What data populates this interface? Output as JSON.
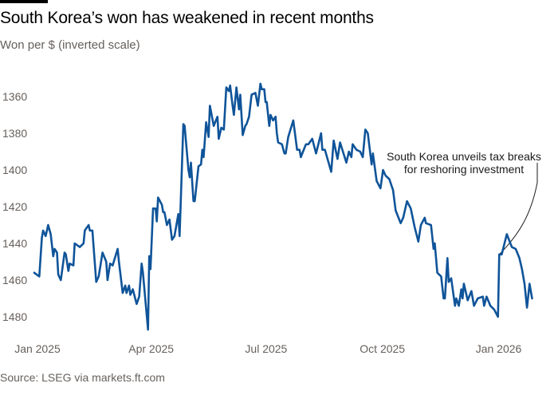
{
  "title": "South Korea’s won has weakened in recent months",
  "subtitle": "Won per $ (inverted scale)",
  "source": "Source: LSEG via markets.ft.com",
  "colors": {
    "line": "#0f5499",
    "text": "#000000",
    "muted": "#66605c",
    "brand_bar": "#000000"
  },
  "chart_data": {
    "type": "line",
    "title": "South Korea’s won has weakened in recent months",
    "ylabel": "Won per $ (inverted scale)",
    "xlabel": "",
    "y_inverted": true,
    "grid": false,
    "y_ticks": [
      1360,
      1380,
      1400,
      1420,
      1440,
      1460,
      1480
    ],
    "x_ticks": [
      {
        "date": "2025-01-01",
        "label": "Jan 2025"
      },
      {
        "date": "2025-04-01",
        "label": "Apr 2025"
      },
      {
        "date": "2025-07-01",
        "label": "Jul 2025"
      },
      {
        "date": "2025-10-01",
        "label": "Oct 2025"
      },
      {
        "date": "2026-01-01",
        "label": "Jan 2026"
      }
    ],
    "annotation": {
      "lines": [
        "South Korea unveils tax breaks",
        "for reshoring investment"
      ],
      "date": "2026-01-04",
      "value": 1446
    },
    "series": [
      {
        "points": [
          [
            "2025-01-01",
            1456
          ],
          [
            "2025-01-05",
            1458
          ],
          [
            "2025-01-07",
            1437
          ],
          [
            "2025-01-08",
            1433
          ],
          [
            "2025-01-10",
            1436
          ],
          [
            "2025-01-12",
            1430
          ],
          [
            "2025-01-14",
            1435
          ],
          [
            "2025-01-16",
            1447
          ],
          [
            "2025-01-17",
            1443
          ],
          [
            "2025-01-19",
            1445
          ],
          [
            "2025-01-20",
            1457
          ],
          [
            "2025-01-22",
            1460
          ],
          [
            "2025-01-25",
            1445
          ],
          [
            "2025-01-26",
            1446
          ],
          [
            "2025-01-28",
            1455
          ],
          [
            "2025-01-29",
            1451
          ],
          [
            "2025-02-01",
            1452
          ],
          [
            "2025-02-02",
            1440
          ],
          [
            "2025-02-06",
            1442
          ],
          [
            "2025-02-09",
            1440
          ],
          [
            "2025-02-10",
            1433
          ],
          [
            "2025-02-13",
            1430
          ],
          [
            "2025-02-14",
            1433
          ],
          [
            "2025-02-16",
            1433
          ],
          [
            "2025-02-19",
            1461
          ],
          [
            "2025-02-21",
            1458
          ],
          [
            "2025-02-24",
            1445
          ],
          [
            "2025-02-27",
            1450
          ],
          [
            "2025-02-28",
            1460
          ],
          [
            "2025-03-02",
            1451
          ],
          [
            "2025-03-04",
            1452
          ],
          [
            "2025-03-08",
            1443
          ],
          [
            "2025-03-09",
            1450
          ],
          [
            "2025-03-12",
            1467
          ],
          [
            "2025-03-14",
            1463
          ],
          [
            "2025-03-15",
            1467
          ],
          [
            "2025-03-17",
            1463
          ],
          [
            "2025-03-18",
            1468
          ],
          [
            "2025-03-20",
            1465
          ],
          [
            "2025-03-23",
            1473
          ],
          [
            "2025-03-25",
            1469
          ],
          [
            "2025-03-27",
            1451
          ],
          [
            "2025-03-28",
            1456
          ],
          [
            "2025-04-01",
            1487
          ],
          [
            "2025-04-02",
            1447
          ],
          [
            "2025-04-03",
            1454
          ],
          [
            "2025-04-05",
            1421
          ],
          [
            "2025-04-07",
            1421
          ],
          [
            "2025-04-08",
            1428
          ],
          [
            "2025-04-09",
            1415
          ],
          [
            "2025-04-12",
            1419
          ],
          [
            "2025-04-13",
            1423
          ],
          [
            "2025-04-14",
            1423
          ],
          [
            "2025-04-16",
            1430
          ],
          [
            "2025-04-18",
            1427
          ],
          [
            "2025-04-20",
            1438
          ],
          [
            "2025-04-22",
            1436
          ],
          [
            "2025-04-25",
            1424
          ],
          [
            "2025-04-26",
            1436
          ],
          [
            "2025-04-29",
            1375
          ],
          [
            "2025-04-30",
            1376
          ],
          [
            "2025-05-03",
            1400
          ],
          [
            "2025-05-04",
            1404
          ],
          [
            "2025-05-05",
            1396
          ],
          [
            "2025-05-07",
            1417
          ],
          [
            "2025-05-08",
            1417
          ],
          [
            "2025-05-11",
            1398
          ],
          [
            "2025-05-13",
            1397
          ],
          [
            "2025-05-14",
            1389
          ],
          [
            "2025-05-15",
            1393
          ],
          [
            "2025-05-17",
            1374
          ],
          [
            "2025-05-19",
            1382
          ],
          [
            "2025-05-20",
            1365
          ],
          [
            "2025-05-23",
            1376
          ],
          [
            "2025-05-26",
            1371
          ],
          [
            "2025-05-27",
            1383
          ],
          [
            "2025-05-29",
            1377
          ],
          [
            "2025-05-31",
            1378
          ],
          [
            "2025-06-02",
            1355
          ],
          [
            "2025-06-04",
            1357
          ],
          [
            "2025-06-05",
            1354
          ],
          [
            "2025-06-07",
            1365
          ],
          [
            "2025-06-08",
            1370
          ],
          [
            "2025-06-10",
            1355
          ],
          [
            "2025-06-12",
            1367
          ],
          [
            "2025-06-13",
            1359
          ],
          [
            "2025-06-15",
            1381
          ],
          [
            "2025-06-17",
            1376
          ],
          [
            "2025-06-18",
            1375
          ],
          [
            "2025-06-20",
            1371
          ],
          [
            "2025-06-22",
            1359
          ],
          [
            "2025-06-25",
            1358
          ],
          [
            "2025-06-27",
            1365
          ],
          [
            "2025-06-29",
            1353
          ],
          [
            "2025-06-30",
            1356
          ],
          [
            "2025-07-02",
            1356
          ],
          [
            "2025-07-03",
            1363
          ],
          [
            "2025-07-04",
            1363
          ],
          [
            "2025-07-06",
            1376
          ],
          [
            "2025-07-07",
            1370
          ],
          [
            "2025-07-09",
            1373
          ],
          [
            "2025-07-11",
            1371
          ],
          [
            "2025-07-12",
            1380
          ],
          [
            "2025-07-13",
            1385
          ],
          [
            "2025-07-16",
            1386
          ],
          [
            "2025-07-18",
            1391
          ],
          [
            "2025-07-19",
            1391
          ],
          [
            "2025-07-21",
            1382
          ],
          [
            "2025-07-25",
            1373
          ],
          [
            "2025-07-28",
            1389
          ],
          [
            "2025-07-30",
            1389
          ],
          [
            "2025-07-31",
            1393
          ],
          [
            "2025-08-04",
            1386
          ],
          [
            "2025-08-06",
            1386
          ],
          [
            "2025-08-09",
            1383
          ],
          [
            "2025-08-12",
            1391
          ],
          [
            "2025-08-16",
            1380
          ],
          [
            "2025-08-17",
            1389
          ],
          [
            "2025-08-19",
            1389
          ],
          [
            "2025-08-24",
            1401
          ],
          [
            "2025-08-26",
            1384
          ],
          [
            "2025-08-29",
            1394
          ],
          [
            "2025-08-31",
            1385
          ],
          [
            "2025-09-05",
            1396
          ],
          [
            "2025-09-07",
            1390
          ],
          [
            "2025-09-09",
            1393
          ],
          [
            "2025-09-10",
            1386
          ],
          [
            "2025-09-13",
            1389
          ],
          [
            "2025-09-16",
            1390
          ],
          [
            "2025-09-18",
            1393
          ],
          [
            "2025-09-20",
            1378
          ],
          [
            "2025-09-22",
            1380
          ],
          [
            "2025-09-25",
            1397
          ],
          [
            "2025-09-26",
            1391
          ],
          [
            "2025-09-29",
            1406
          ],
          [
            "2025-10-02",
            1410
          ],
          [
            "2025-10-04",
            1400
          ],
          [
            "2025-10-06",
            1403
          ],
          [
            "2025-10-09",
            1405
          ],
          [
            "2025-10-12",
            1411
          ],
          [
            "2025-10-14",
            1422
          ],
          [
            "2025-10-18",
            1429
          ],
          [
            "2025-10-20",
            1426
          ],
          [
            "2025-10-21",
            1423
          ],
          [
            "2025-10-23",
            1417
          ],
          [
            "2025-10-26",
            1421
          ],
          [
            "2025-10-29",
            1431
          ],
          [
            "2025-11-01",
            1439
          ],
          [
            "2025-11-03",
            1430
          ],
          [
            "2025-11-06",
            1426
          ],
          [
            "2025-11-07",
            1429
          ],
          [
            "2025-11-11",
            1430
          ],
          [
            "2025-11-13",
            1443
          ],
          [
            "2025-11-14",
            1440
          ],
          [
            "2025-11-16",
            1456
          ],
          [
            "2025-11-19",
            1458
          ],
          [
            "2025-11-21",
            1470
          ],
          [
            "2025-11-22",
            1470
          ],
          [
            "2025-11-24",
            1448
          ],
          [
            "2025-11-25",
            1461
          ],
          [
            "2025-11-27",
            1459
          ],
          [
            "2025-11-30",
            1474
          ],
          [
            "2025-12-01",
            1470
          ],
          [
            "2025-12-03",
            1474
          ],
          [
            "2025-12-05",
            1465
          ],
          [
            "2025-12-06",
            1470
          ],
          [
            "2025-12-07",
            1462
          ],
          [
            "2025-12-10",
            1471
          ],
          [
            "2025-12-13",
            1466
          ],
          [
            "2025-12-15",
            1474
          ],
          [
            "2025-12-18",
            1470
          ],
          [
            "2025-12-22",
            1469
          ],
          [
            "2025-12-23",
            1474
          ],
          [
            "2025-12-25",
            1469
          ],
          [
            "2025-12-28",
            1474
          ],
          [
            "2025-12-31",
            1476
          ],
          [
            "2026-01-03",
            1480
          ],
          [
            "2026-01-04",
            1446
          ],
          [
            "2026-01-06",
            1446
          ],
          [
            "2026-01-10",
            1435
          ],
          [
            "2026-01-14",
            1442
          ],
          [
            "2026-01-17",
            1443
          ],
          [
            "2026-01-20",
            1448
          ],
          [
            "2026-01-22",
            1454
          ],
          [
            "2026-01-24",
            1462
          ],
          [
            "2026-01-26",
            1475
          ],
          [
            "2026-01-28",
            1462
          ],
          [
            "2026-01-30",
            1470
          ]
        ]
      }
    ]
  }
}
